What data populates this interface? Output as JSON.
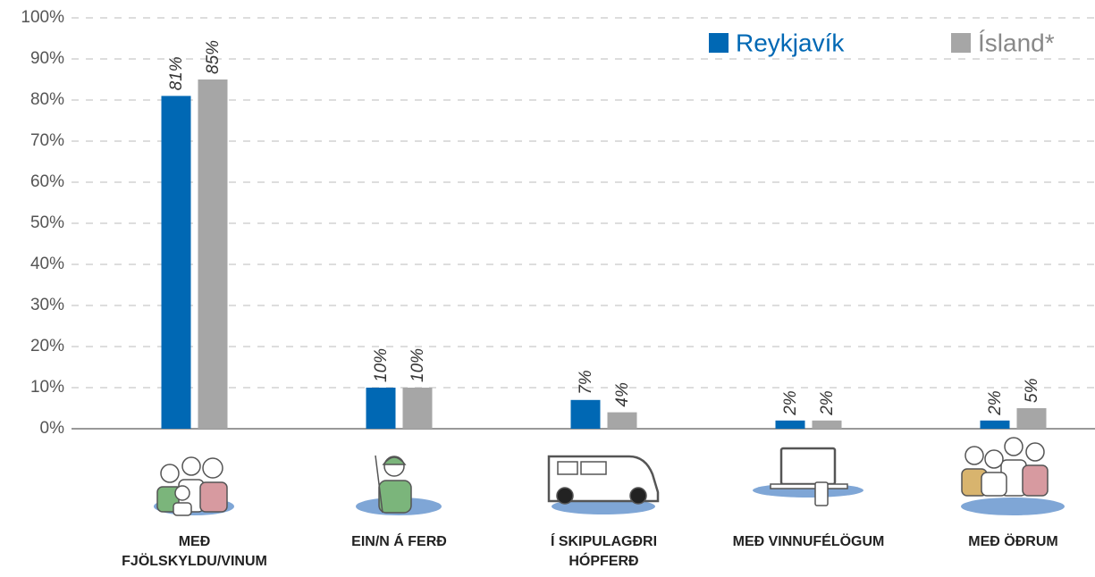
{
  "chart_data": {
    "type": "bar",
    "categories": [
      "MEÐ FJÖLSKYLDU/VINUM",
      "EIN/N Á FERÐ",
      "Í SKIPULAGÐRI HÓPFERÐ",
      "MEÐ VINNUFÉLÖGUM",
      "MEÐ ÖÐRUM"
    ],
    "series": [
      {
        "name": "Reykjavík",
        "color": "#0068b4",
        "values": [
          81,
          10,
          7,
          2,
          2
        ],
        "value_labels": [
          "81%",
          "10%",
          "7%",
          "2%",
          "2%"
        ]
      },
      {
        "name": "Ísland*",
        "color": "#a6a6a6",
        "values": [
          85,
          10,
          4,
          2,
          5
        ],
        "value_labels": [
          "85%",
          "10%",
          "4%",
          "2%",
          "5%"
        ]
      }
    ],
    "ylim": [
      0,
      100
    ],
    "yticks": [
      {
        "value": 0,
        "label": "0%"
      },
      {
        "value": 10,
        "label": "10%"
      },
      {
        "value": 20,
        "label": "20%"
      },
      {
        "value": 30,
        "label": "30%"
      },
      {
        "value": 40,
        "label": "40%"
      },
      {
        "value": 50,
        "label": "50%"
      },
      {
        "value": 60,
        "label": "60%"
      },
      {
        "value": 70,
        "label": "70%"
      },
      {
        "value": 80,
        "label": "80%"
      },
      {
        "value": 90,
        "label": "90%"
      },
      {
        "value": 100,
        "label": "100%"
      }
    ],
    "grid": true
  }
}
